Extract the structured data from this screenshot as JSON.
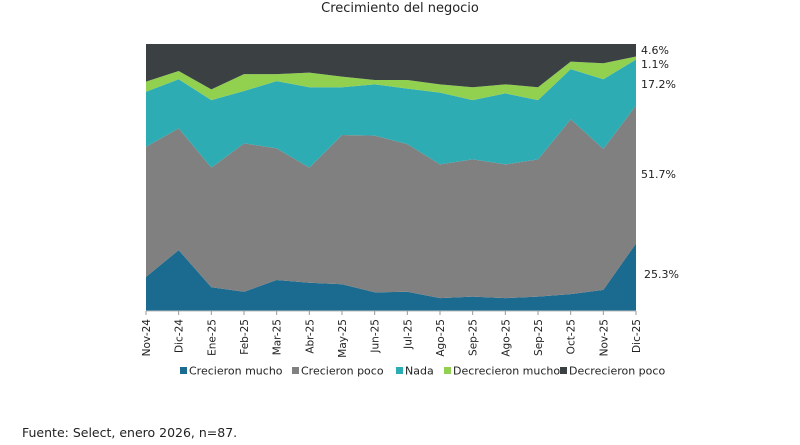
{
  "chart_data": {
    "type": "area",
    "stacked": "percent",
    "title": "Crecimiento del negocio",
    "xlabel": "",
    "ylabel": "",
    "ylim": [
      0,
      100
    ],
    "categories": [
      "Nov-24",
      "Dic-24",
      "Ene-25",
      "Feb-25",
      "Mar-25",
      "Abr-25",
      "May-25",
      "Jun-25",
      "Jul-25",
      "Ago-25",
      "Sep-25",
      "Ago-25",
      "Sep-25",
      "Oct-25",
      "Nov-25",
      "Dic-25"
    ],
    "series": [
      {
        "name": "Crecieron mucho",
        "color": "#1b6a8f",
        "values": [
          12.8,
          22.8,
          8.9,
          7.2,
          11.6,
          10.6,
          10.0,
          7.0,
          7.2,
          4.8,
          5.4,
          4.8,
          5.4,
          6.3,
          7.9,
          25.3
        ]
      },
      {
        "name": "Crecieron poco",
        "color": "#808080",
        "values": [
          48.7,
          45.6,
          44.8,
          55.6,
          49.3,
          43.1,
          55.9,
          58.7,
          55.3,
          50.1,
          51.4,
          50.1,
          51.4,
          65.5,
          52.8,
          51.7
        ]
      },
      {
        "name": "Nada",
        "color": "#2eacb3",
        "values": [
          20.6,
          18.4,
          25.3,
          19.6,
          25.2,
          30.1,
          17.9,
          19.2,
          20.8,
          26.9,
          22.2,
          26.6,
          22.2,
          18.8,
          26.1,
          17.2
        ]
      },
      {
        "name": "Decrecieron mucho",
        "color": "#92d050",
        "values": [
          3.8,
          3.1,
          4.0,
          6.3,
          2.6,
          5.5,
          4.0,
          1.6,
          3.2,
          3.1,
          4.8,
          3.4,
          4.8,
          2.8,
          6.0,
          1.1
        ]
      },
      {
        "name": "Decrecieron poco",
        "color": "#3b4143",
        "values": [
          14.1,
          10.1,
          17.0,
          11.3,
          11.3,
          10.7,
          12.2,
          13.5,
          13.5,
          15.1,
          16.2,
          15.1,
          16.2,
          6.6,
          7.2,
          4.6
        ]
      }
    ],
    "end_labels": [
      "25.3%",
      "51.7%",
      "17.2%",
      "1.1%",
      "4.6%"
    ],
    "legend_position": "bottom",
    "grid": false
  },
  "footer": "Fuente: Select, enero 2026, n=87."
}
